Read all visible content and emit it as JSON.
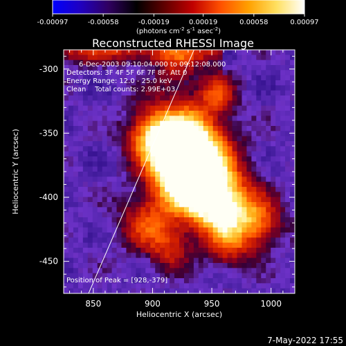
{
  "chart_data": {
    "type": "heatmap",
    "title": "Reconstructed RHESSI Image",
    "xlabel": "Heliocentric X (arcsec)",
    "ylabel": "Heliocentric Y (arcsec)",
    "xlim": [
      825,
      1020
    ],
    "ylim": [
      -475,
      -285
    ],
    "x_ticks": [
      850,
      900,
      950,
      1000
    ],
    "y_ticks": [
      -450,
      -400,
      -350,
      -300
    ],
    "colorbar": {
      "min": -0.00097,
      "max": 0.00097,
      "tick_labels": [
        "-0.00097",
        "-0.00058",
        "-0.00019",
        "0.00019",
        "0.00058",
        "0.00097"
      ],
      "unit_label": "(photons cm",
      "unit_sup1": "-2",
      "unit_mid": " s",
      "unit_sup2": "-1",
      "unit_tail": " asec",
      "unit_sup3": "-2",
      "unit_close": ")",
      "colors": [
        "#0000ff",
        "#2000c0",
        "#300060",
        "#000000",
        "#600000",
        "#c00000",
        "#ff5000",
        "#ffa000",
        "#ffe060",
        "#ffffff"
      ]
    },
    "annotations": [
      "6-Dec-2003 09:10:04.000 to 09:12:08.000",
      "Detectors: 3F 4F 5F 6F 7F 8F, Att 0",
      "Energy Range: 12.0 - 25.0 keV",
      "Clean    Total counts: 2.99E+03"
    ],
    "peak_label": "Position of Peak = [928,-379]",
    "peak": [
      928,
      -379
    ],
    "limb_line": {
      "from": [
        846,
        -475
      ],
      "to": [
        935,
        -285
      ]
    },
    "grid": false
  },
  "timestamp": "7-May-2022 17:55"
}
